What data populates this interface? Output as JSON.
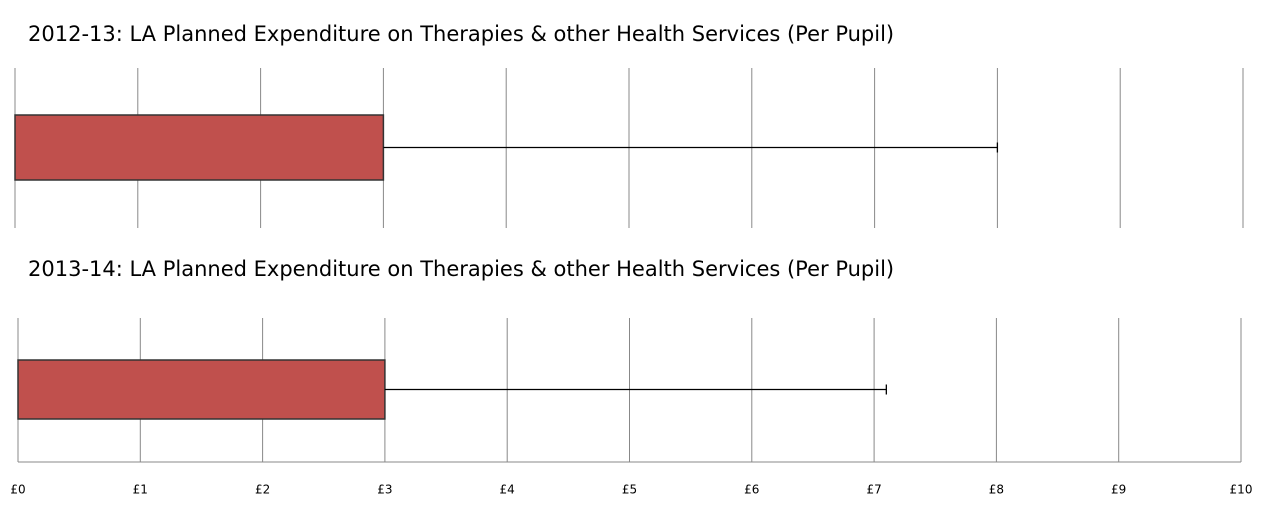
{
  "chart_data": [
    {
      "type": "bar",
      "title": "2012-13: LA Planned Expenditure on Therapies & other Health Services (Per Pupil)",
      "values": [
        3
      ],
      "errors": [
        5
      ],
      "color": "#c0504d",
      "xlim": [
        0,
        10
      ],
      "xticks": [
        0,
        1,
        2,
        3,
        4,
        5,
        6,
        7,
        8,
        9,
        10
      ],
      "grid": true
    },
    {
      "type": "bar",
      "title": "2013-14: LA Planned Expenditure on Therapies & other Health Services (Per Pupil)",
      "values": [
        3
      ],
      "errors": [
        4.1
      ],
      "color": "#c0504d",
      "xlim": [
        0,
        10
      ],
      "xticks": [
        {
          "value": 0,
          "label": "£0"
        },
        {
          "value": 1,
          "label": "£1"
        },
        {
          "value": 2,
          "label": "£2"
        },
        {
          "value": 3,
          "label": "£3"
        },
        {
          "value": 4,
          "label": "£4"
        },
        {
          "value": 5,
          "label": "£5"
        },
        {
          "value": 6,
          "label": "£6"
        },
        {
          "value": 7,
          "label": "£7"
        },
        {
          "value": 8,
          "label": "£8"
        },
        {
          "value": 9,
          "label": "£9"
        },
        {
          "value": 10,
          "label": "£10"
        }
      ],
      "grid": true
    }
  ]
}
